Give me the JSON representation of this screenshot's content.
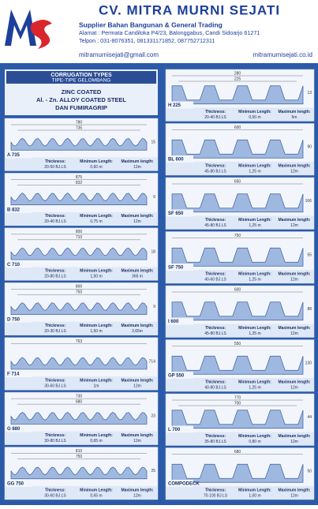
{
  "header": {
    "company": "CV. MITRA MURNI SEJATI",
    "tagline": "Supplier Bahan Bangunan & General Trading",
    "address": "Alamat : Permata Candiloka P4/23, Balonggabus, Candi Sidoarjo 61271",
    "phone": "Telpon : 031-8076351, 081331171852, 087752712311",
    "email": "mitramurnisejati@gmail.com",
    "website": "mitramurnisejati.co.id"
  },
  "intro": {
    "title": "CORRUGATION TYPES",
    "subtitle": "TIPE-TIPE GELOMBANG",
    "coating1": "ZINC COATED",
    "coating2": "Al. - Zn. ALLOY COATED STEEL",
    "coating3": "DAN FUMIRAGRIP"
  },
  "labels": {
    "thickness": "Thickness:",
    "min": "Minimum Length:",
    "max": "Maximum length:"
  },
  "left": [
    {
      "name": "A 735",
      "dims": [
        780,
        735,
        15
      ],
      "thickness": "20-50 BJ.LS",
      "min": "0,60 m",
      "max": "12m"
    },
    {
      "name": "B 832",
      "dims": [
        875,
        832,
        6
      ],
      "thickness": "20-40 BJ.LS",
      "min": "0,75 m",
      "max": "12m"
    },
    {
      "name": "C 710",
      "dims": [
        800,
        710,
        18
      ],
      "thickness": "20-80 BJ.LS",
      "min": "1,50 m",
      "max": "365 m"
    },
    {
      "name": "D 750",
      "dims": [
        800,
        750,
        9
      ],
      "thickness": "20-30 BJ.LS",
      "min": "1,50 m",
      "max": "3,65m"
    },
    {
      "name": "F 714",
      "dims": [
        763,
        714
      ],
      "thickness": "30-60 BJ.LS",
      "min": "1m",
      "max": "12m"
    },
    {
      "name": "G 680",
      "dims": [
        730,
        680,
        23
      ],
      "thickness": "30-80 BJ.LS",
      "min": "0,65 m",
      "max": "12m"
    },
    {
      "name": "GG 750",
      "dims": [
        810,
        750,
        25
      ],
      "thickness": "30-60 BJ.LS",
      "min": "0,65 m",
      "max": "12m"
    }
  ],
  "right": [
    {
      "name": "H 225",
      "dims": [
        280,
        225,
        13
      ],
      "thickness": "20-40 BJ.LS",
      "min": "0,50 m",
      "max": "5m"
    },
    {
      "name": "BL 600",
      "dims": [
        600,
        90
      ],
      "thickness": "45-80 BJ.LS",
      "min": "1,25 m",
      "max": "12m"
    },
    {
      "name": "SF 650",
      "dims": [
        650,
        166
      ],
      "thickness": "45-80 BJ.LS",
      "min": "1,25 m",
      "max": "12m"
    },
    {
      "name": "SF 750",
      "dims": [
        750,
        55
      ],
      "thickness": "40-60 BJ.LS",
      "min": "1,25 m",
      "max": "12m"
    },
    {
      "name": "I 600",
      "dims": [
        600,
        88
      ],
      "thickness": "45-80 BJ.LS",
      "min": "1,25 m",
      "max": "12m"
    },
    {
      "name": "GP 550",
      "dims": [
        550,
        130
      ],
      "thickness": "40-80 BJ.LS",
      "min": "1,25 m",
      "max": "12m"
    },
    {
      "name": "L 700",
      "dims": [
        770,
        700,
        44
      ],
      "thickness": "35-80 BJ.LS",
      "min": "0,80 m",
      "max": "12m"
    },
    {
      "name": "COMPODECK",
      "dims": [
        680,
        50
      ],
      "thickness": "70-100 BJ.LS",
      "min": "1,00 m",
      "max": "12m"
    }
  ]
}
